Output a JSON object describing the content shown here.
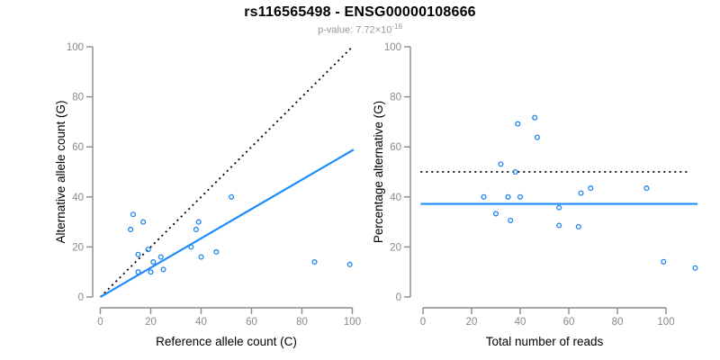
{
  "header": {
    "title": "rs116565498 - ENSG00000108666",
    "pvalue_prefix": "p-value: 7.72×10",
    "pvalue_exponent": "-16"
  },
  "colors": {
    "accent_blue": "#1E8CFF",
    "point_blue": "#1C86EE",
    "reference_black": "#000000",
    "axis_gray": "#8A8A8A",
    "tick_label_gray": "#8A8A8A",
    "axis_title_black": "#000000",
    "subtitle_gray": "#999999"
  },
  "chart_data": [
    {
      "type": "scatter",
      "name": "allele-counts-panel",
      "xlabel": "Reference allele count (C)",
      "ylabel": "Alternative allele count (G)",
      "xlim": [
        0,
        100
      ],
      "ylim": [
        0,
        100
      ],
      "xticks": [
        0,
        20,
        40,
        60,
        80,
        100
      ],
      "yticks": [
        0,
        20,
        40,
        60,
        80,
        100
      ],
      "grid": false,
      "points": [
        [
          12,
          27
        ],
        [
          13,
          33
        ],
        [
          15,
          10
        ],
        [
          15,
          17
        ],
        [
          17,
          30
        ],
        [
          19,
          19
        ],
        [
          20,
          10
        ],
        [
          21,
          14
        ],
        [
          24,
          16
        ],
        [
          25,
          11
        ],
        [
          36,
          20
        ],
        [
          38,
          27
        ],
        [
          39,
          30
        ],
        [
          40,
          16
        ],
        [
          46,
          18
        ],
        [
          52,
          40
        ],
        [
          85,
          14
        ],
        [
          99,
          13
        ]
      ],
      "lines": [
        {
          "name": "identity-line",
          "style": "dotted",
          "color_key": "reference_black",
          "coords": [
            [
              0,
              0
            ],
            [
              99.5,
              99.5
            ]
          ]
        },
        {
          "name": "trend-line",
          "style": "solid",
          "color_key": "accent_blue",
          "coords": [
            [
              0,
              0
            ],
            [
              100.5,
              58.9
            ]
          ]
        }
      ]
    },
    {
      "type": "scatter",
      "name": "percentage-panel",
      "xlabel": "Total number of reads",
      "ylabel": "Percentage alternative (G)",
      "xlim": [
        0,
        100
      ],
      "ylim": [
        0,
        100
      ],
      "xticks": [
        0,
        20,
        40,
        60,
        80,
        100
      ],
      "yticks": [
        0,
        20,
        40,
        60,
        80,
        100
      ],
      "grid": false,
      "points": [
        [
          25,
          40
        ],
        [
          30,
          33.3
        ],
        [
          32,
          53.1
        ],
        [
          35,
          40
        ],
        [
          36,
          30.6
        ],
        [
          38,
          50
        ],
        [
          39,
          69.2
        ],
        [
          40,
          40
        ],
        [
          46,
          71.7
        ],
        [
          47,
          63.8
        ],
        [
          56,
          35.7
        ],
        [
          56,
          28.6
        ],
        [
          64,
          28.1
        ],
        [
          65,
          41.5
        ],
        [
          69,
          43.5
        ],
        [
          92,
          43.5
        ],
        [
          99,
          14.1
        ],
        [
          112,
          11.6
        ]
      ],
      "lines": [
        {
          "name": "fifty-percent-line",
          "style": "dotted",
          "color_key": "reference_black",
          "coords": [
            [
              -1,
              50
            ],
            [
              110,
              50
            ]
          ]
        },
        {
          "name": "mean-percentage-line",
          "style": "solid",
          "color_key": "accent_blue",
          "coords": [
            [
              -1,
              37.2
            ],
            [
              113,
              37.2
            ]
          ]
        }
      ]
    }
  ]
}
